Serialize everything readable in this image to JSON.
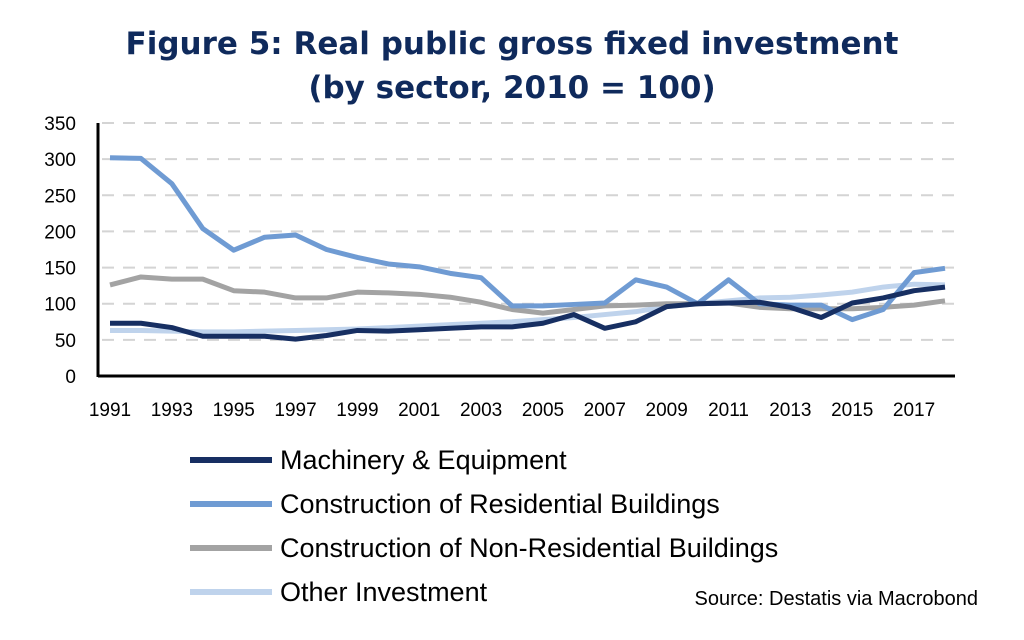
{
  "chart_data": {
    "type": "line",
    "title": "Figure 5: Real public gross fixed investment",
    "subtitle": "(by sector, 2010 = 100)",
    "xlabel": "",
    "ylabel": "",
    "ylim": [
      0,
      350
    ],
    "yticks": [
      "0",
      "50",
      "100",
      "150",
      "200",
      "250",
      "300",
      "350"
    ],
    "xticks": [
      "1991",
      "1993",
      "1995",
      "1997",
      "1999",
      "2001",
      "2003",
      "2005",
      "2007",
      "2009",
      "2011",
      "2013",
      "2015",
      "2017"
    ],
    "x": [
      1991,
      1992,
      1993,
      1994,
      1995,
      1996,
      1997,
      1998,
      1999,
      2000,
      2001,
      2002,
      2003,
      2004,
      2005,
      2006,
      2007,
      2008,
      2009,
      2010,
      2011,
      2012,
      2013,
      2014,
      2015,
      2016,
      2017,
      2018
    ],
    "grid": "horizontal dashed",
    "legend_position": "bottom",
    "series": [
      {
        "name": "Machinery & Equipment",
        "color": "#172f62",
        "values": [
          73,
          73,
          67,
          55,
          55,
          55,
          51,
          56,
          63,
          62,
          64,
          66,
          68,
          68,
          73,
          85,
          66,
          75,
          96,
          100,
          101,
          102,
          95,
          81,
          101,
          108,
          118,
          123
        ]
      },
      {
        "name": "Construction of Residential Buildings",
        "color": "#6f9bd3",
        "values": [
          302,
          301,
          266,
          204,
          174,
          192,
          195,
          175,
          164,
          155,
          151,
          142,
          136,
          97,
          97,
          99,
          101,
          133,
          123,
          100,
          133,
          100,
          98,
          98,
          78,
          92,
          143,
          149
        ]
      },
      {
        "name": "Construction of Non-Residential Buildings",
        "color": "#a3a3a3",
        "values": [
          126,
          137,
          134,
          134,
          118,
          116,
          108,
          108,
          116,
          115,
          113,
          109,
          102,
          92,
          87,
          92,
          97,
          98,
          100,
          100,
          101,
          95,
          93,
          93,
          93,
          95,
          98,
          104
        ]
      },
      {
        "name": "Other Investment",
        "color": "#bfd3ec",
        "values": [
          63,
          63,
          62,
          61,
          61,
          62,
          63,
          64,
          65,
          67,
          69,
          71,
          73,
          75,
          78,
          81,
          85,
          89,
          96,
          100,
          104,
          108,
          109,
          112,
          116,
          123,
          127,
          126
        ]
      }
    ],
    "source": "Source: Destatis via Macrobond"
  }
}
